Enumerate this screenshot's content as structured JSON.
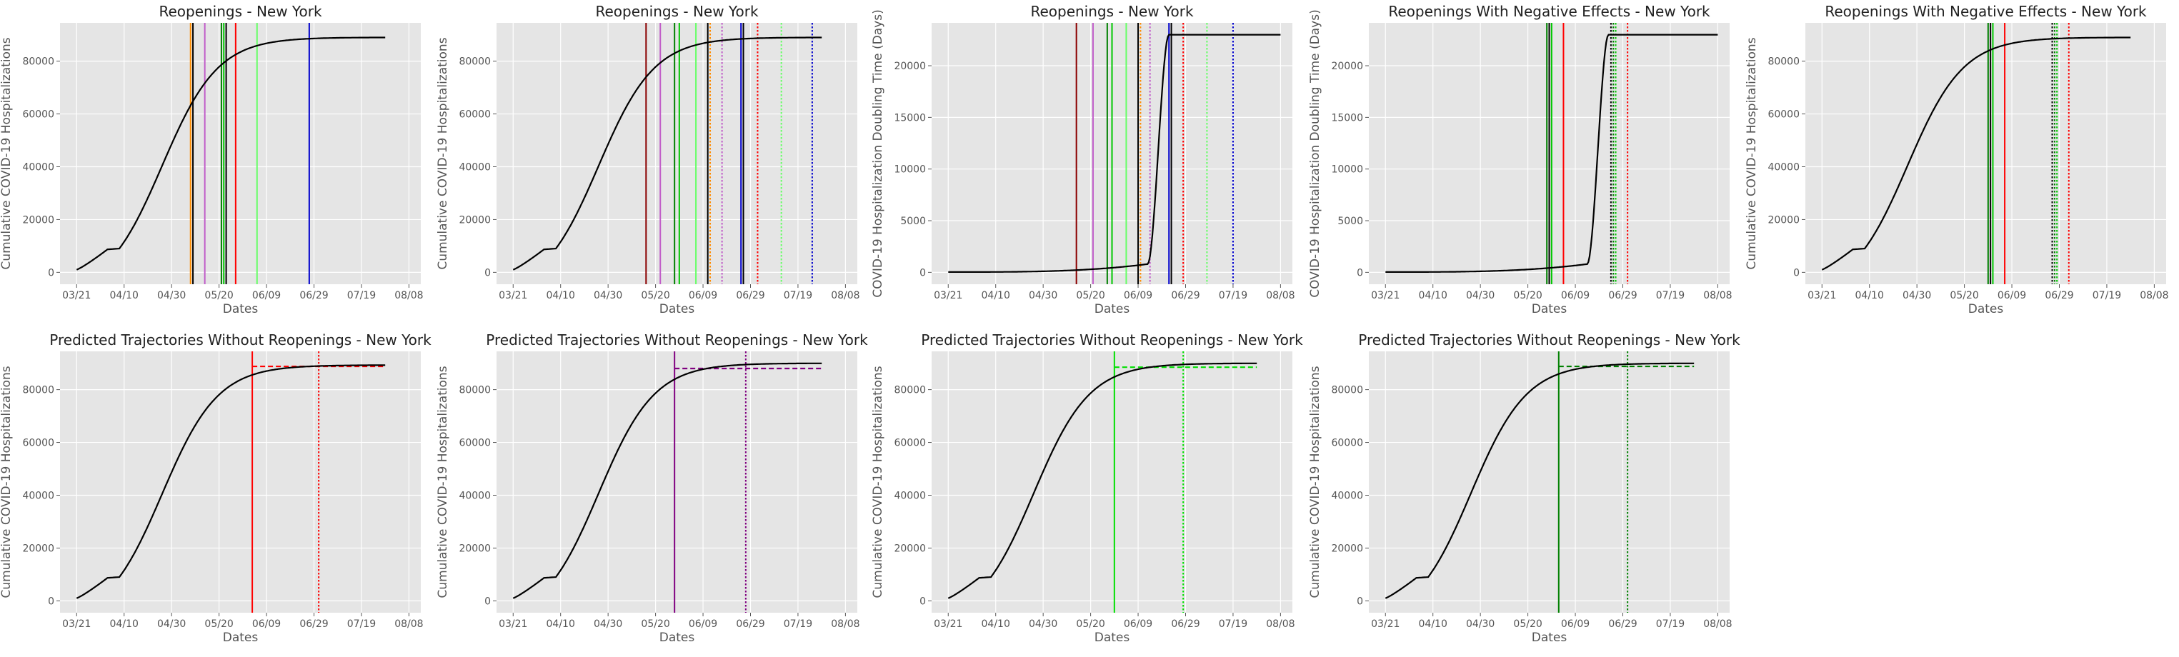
{
  "chart_data": [
    {
      "type": "line",
      "title": "Reopenings - New York",
      "xlabel": "Dates",
      "ylabel": "Cumulative COVID-19 Hospitalizations",
      "x_ticks": [
        "03/21",
        "04/10",
        "04/30",
        "05/20",
        "06/09",
        "06/29",
        "07/19",
        "08/08"
      ],
      "x_tick_days": [
        0,
        20,
        40,
        60,
        80,
        100,
        120,
        140
      ],
      "xlim": [
        -7,
        145
      ],
      "y_ticks": [
        0,
        20000,
        40000,
        60000,
        80000
      ],
      "ylim": [
        -4500,
        94500
      ],
      "grid": true,
      "curve": "logistic",
      "curve_params": {
        "y0": 1000,
        "cap": 89000,
        "plateau_start": 13,
        "plateau_end": 18,
        "x_end": 130
      },
      "vlines": [
        {
          "x": 48,
          "color": "#ff8c00",
          "style": "solid"
        },
        {
          "x": 49,
          "color": "#000000",
          "style": "solid"
        },
        {
          "x": 54,
          "color": "#c05cc8",
          "style": "solid"
        },
        {
          "x": 61,
          "color": "#008000",
          "style": "solid"
        },
        {
          "x": 62,
          "color": "#00c800",
          "style": "solid"
        },
        {
          "x": 63,
          "color": "#000000",
          "style": "solid"
        },
        {
          "x": 67,
          "color": "#ff0000",
          "style": "solid"
        },
        {
          "x": 76,
          "color": "#66ff66",
          "style": "solid"
        },
        {
          "x": 98,
          "color": "#0000cc",
          "style": "solid"
        }
      ]
    },
    {
      "type": "line",
      "title": "Reopenings - New York",
      "xlabel": "Dates",
      "ylabel": "Cumulative COVID-19 Hospitalizations",
      "x_ticks": [
        "03/21",
        "04/10",
        "04/30",
        "05/20",
        "06/09",
        "06/29",
        "07/19",
        "08/08"
      ],
      "x_tick_days": [
        0,
        20,
        40,
        60,
        80,
        100,
        120,
        140
      ],
      "xlim": [
        -7,
        145
      ],
      "y_ticks": [
        0,
        20000,
        40000,
        60000,
        80000
      ],
      "ylim": [
        -4500,
        94500
      ],
      "grid": true,
      "curve": "logistic",
      "curve_params": {
        "y0": 1000,
        "cap": 89000,
        "plateau_start": 13,
        "plateau_end": 18,
        "x_end": 130
      },
      "vlines": [
        {
          "x": 56,
          "color": "#8b0000",
          "style": "solid"
        },
        {
          "x": 62,
          "color": "#c05cc8",
          "style": "solid"
        },
        {
          "x": 68,
          "color": "#008000",
          "style": "solid"
        },
        {
          "x": 70,
          "color": "#00c800",
          "style": "solid"
        },
        {
          "x": 77,
          "color": "#66ff66",
          "style": "solid"
        },
        {
          "x": 82,
          "color": "#000000",
          "style": "solid"
        },
        {
          "x": 83,
          "color": "#ff8c00",
          "style": "dotted"
        },
        {
          "x": 88,
          "color": "#c05cc8",
          "style": "dotted"
        },
        {
          "x": 96,
          "color": "#0000cc",
          "style": "solid"
        },
        {
          "x": 97,
          "color": "#000000",
          "style": "solid"
        },
        {
          "x": 103,
          "color": "#ff0000",
          "style": "dotted"
        },
        {
          "x": 113,
          "color": "#66ff66",
          "style": "dotted"
        },
        {
          "x": 126,
          "color": "#0000cc",
          "style": "dotted"
        }
      ]
    },
    {
      "type": "line",
      "title": "Reopenings - New York",
      "xlabel": "Dates",
      "ylabel": "COVID-19 Hospitalization Doubling Time (Days)",
      "x_ticks": [
        "03/21",
        "04/10",
        "04/30",
        "05/20",
        "06/09",
        "06/29",
        "07/19",
        "08/08"
      ],
      "x_tick_days": [
        0,
        20,
        40,
        60,
        80,
        100,
        120,
        140
      ],
      "xlim": [
        -7,
        145
      ],
      "y_ticks": [
        0,
        5000,
        10000,
        15000,
        20000
      ],
      "ylim": [
        -1150,
        24150
      ],
      "grid": true,
      "curve": "doubling",
      "curve_params": {
        "y0": 30,
        "y_pre": 800,
        "bend": 84,
        "top_x": 93,
        "cap": 23000,
        "x_end": 140
      },
      "vlines": [
        {
          "x": 54,
          "color": "#8b0000",
          "style": "solid"
        },
        {
          "x": 61,
          "color": "#c05cc8",
          "style": "solid"
        },
        {
          "x": 67,
          "color": "#008000",
          "style": "solid"
        },
        {
          "x": 69,
          "color": "#00c800",
          "style": "solid"
        },
        {
          "x": 75,
          "color": "#66ff66",
          "style": "solid"
        },
        {
          "x": 80,
          "color": "#000000",
          "style": "solid"
        },
        {
          "x": 81,
          "color": "#ff8c00",
          "style": "dotted"
        },
        {
          "x": 85,
          "color": "#c05cc8",
          "style": "dotted"
        },
        {
          "x": 93,
          "color": "#0000cc",
          "style": "solid"
        },
        {
          "x": 94,
          "color": "#000000",
          "style": "solid"
        },
        {
          "x": 99,
          "color": "#ff0000",
          "style": "dotted"
        },
        {
          "x": 109,
          "color": "#66ff66",
          "style": "dotted"
        },
        {
          "x": 120,
          "color": "#0000cc",
          "style": "dotted"
        }
      ]
    },
    {
      "type": "line",
      "title": "Reopenings With Negative Effects - New York",
      "xlabel": "Dates",
      "ylabel": "COVID-19 Hospitalization Doubling Time (Days)",
      "x_ticks": [
        "03/21",
        "04/10",
        "04/30",
        "05/20",
        "06/09",
        "06/29",
        "07/19",
        "08/08"
      ],
      "x_tick_days": [
        0,
        20,
        40,
        60,
        80,
        100,
        120,
        140
      ],
      "xlim": [
        -7,
        145
      ],
      "y_ticks": [
        0,
        5000,
        10000,
        15000,
        20000
      ],
      "ylim": [
        -1150,
        24150
      ],
      "grid": true,
      "curve": "doubling",
      "curve_params": {
        "y0": 30,
        "y_pre": 800,
        "bend": 85,
        "top_x": 94,
        "cap": 23000,
        "x_end": 140
      },
      "vlines": [
        {
          "x": 68,
          "color": "#008000",
          "style": "solid"
        },
        {
          "x": 69,
          "color": "#000000",
          "style": "solid"
        },
        {
          "x": 70,
          "color": "#00c800",
          "style": "solid"
        },
        {
          "x": 75,
          "color": "#ff0000",
          "style": "solid"
        },
        {
          "x": 95,
          "color": "#000000",
          "style": "dotted"
        },
        {
          "x": 96,
          "color": "#008000",
          "style": "dotted"
        },
        {
          "x": 97,
          "color": "#00c800",
          "style": "dotted"
        },
        {
          "x": 102,
          "color": "#ff0000",
          "style": "dotted"
        }
      ]
    },
    {
      "type": "line",
      "title": "Reopenings With Negative Effects - New York",
      "xlabel": "Dates",
      "ylabel": "Cumulative COVID-19 Hospitalizations",
      "x_ticks": [
        "03/21",
        "04/10",
        "04/30",
        "05/20",
        "06/09",
        "06/29",
        "07/19",
        "08/08"
      ],
      "x_tick_days": [
        0,
        20,
        40,
        60,
        80,
        100,
        120,
        140
      ],
      "xlim": [
        -7,
        145
      ],
      "y_ticks": [
        0,
        20000,
        40000,
        60000,
        80000
      ],
      "ylim": [
        -4500,
        94500
      ],
      "grid": true,
      "curve": "logistic",
      "curve_params": {
        "y0": 1000,
        "cap": 89000,
        "plateau_start": 13,
        "plateau_end": 18,
        "x_end": 130
      },
      "vlines": [
        {
          "x": 70,
          "color": "#008000",
          "style": "solid"
        },
        {
          "x": 71,
          "color": "#000000",
          "style": "solid"
        },
        {
          "x": 72,
          "color": "#00c800",
          "style": "solid"
        },
        {
          "x": 77,
          "color": "#ff0000",
          "style": "solid"
        },
        {
          "x": 97,
          "color": "#000000",
          "style": "dotted"
        },
        {
          "x": 98,
          "color": "#008000",
          "style": "dotted"
        },
        {
          "x": 99,
          "color": "#00c800",
          "style": "dotted"
        },
        {
          "x": 104,
          "color": "#ff0000",
          "style": "dotted"
        }
      ]
    },
    {
      "type": "line",
      "title": "Predicted Trajectories Without Reopenings - New York",
      "xlabel": "Dates",
      "ylabel": "Cumulative COVID-19 Hospitalizations",
      "x_ticks": [
        "03/21",
        "04/10",
        "04/30",
        "05/20",
        "06/09",
        "06/29",
        "07/19",
        "08/08"
      ],
      "x_tick_days": [
        0,
        20,
        40,
        60,
        80,
        100,
        120,
        140
      ],
      "xlim": [
        -7,
        145
      ],
      "y_ticks": [
        0,
        20000,
        40000,
        60000,
        80000
      ],
      "ylim": [
        -4500,
        94500
      ],
      "grid": true,
      "curve": "logistic",
      "curve_params": {
        "y0": 1000,
        "cap": 89300,
        "plateau_start": 13,
        "plateau_end": 18,
        "x_end": 130
      },
      "vlines": [
        {
          "x": 74,
          "color": "#ff0000",
          "style": "solid"
        },
        {
          "x": 102,
          "color": "#ff0000",
          "style": "dotted"
        }
      ],
      "projection": {
        "color": "#ff0000",
        "x_start": 74,
        "x_end": 130,
        "value": 88800
      }
    },
    {
      "type": "line",
      "title": "Predicted Trajectories Without Reopenings - New York",
      "xlabel": "Dates",
      "ylabel": "Cumulative COVID-19 Hospitalizations",
      "x_ticks": [
        "03/21",
        "04/10",
        "04/30",
        "05/20",
        "06/09",
        "06/29",
        "07/19",
        "08/08"
      ],
      "x_tick_days": [
        0,
        20,
        40,
        60,
        80,
        100,
        120,
        140
      ],
      "xlim": [
        -7,
        145
      ],
      "y_ticks": [
        0,
        20000,
        40000,
        60000,
        80000
      ],
      "ylim": [
        -4500,
        94500
      ],
      "grid": true,
      "curve": "logistic",
      "curve_params": {
        "y0": 1000,
        "cap": 90000,
        "plateau_start": 13,
        "plateau_end": 18,
        "x_end": 130
      },
      "vlines": [
        {
          "x": 68,
          "color": "#800080",
          "style": "solid"
        },
        {
          "x": 98,
          "color": "#800080",
          "style": "dotted"
        }
      ],
      "projection": {
        "color": "#800080",
        "x_start": 68,
        "x_end": 130,
        "value": 88000
      }
    },
    {
      "type": "line",
      "title": "Predicted Trajectories Without Reopenings - New York",
      "xlabel": "Dates",
      "ylabel": "Cumulative COVID-19 Hospitalizations",
      "x_ticks": [
        "03/21",
        "04/10",
        "04/30",
        "05/20",
        "06/09",
        "06/29",
        "07/19",
        "08/08"
      ],
      "x_tick_days": [
        0,
        20,
        40,
        60,
        80,
        100,
        120,
        140
      ],
      "xlim": [
        -7,
        145
      ],
      "y_ticks": [
        0,
        20000,
        40000,
        60000,
        80000
      ],
      "ylim": [
        -4500,
        94500
      ],
      "grid": true,
      "curve": "logistic",
      "curve_params": {
        "y0": 1000,
        "cap": 90000,
        "plateau_start": 13,
        "plateau_end": 18,
        "x_end": 130
      },
      "vlines": [
        {
          "x": 70,
          "color": "#00e000",
          "style": "solid"
        },
        {
          "x": 99,
          "color": "#00e000",
          "style": "dotted"
        }
      ],
      "projection": {
        "color": "#00e000",
        "x_start": 70,
        "x_end": 130,
        "value": 88500
      }
    },
    {
      "type": "line",
      "title": "Predicted Trajectories Without Reopenings - New York",
      "xlabel": "Dates",
      "ylabel": "Cumulative COVID-19 Hospitalizations",
      "x_ticks": [
        "03/21",
        "04/10",
        "04/30",
        "05/20",
        "06/09",
        "06/29",
        "07/19",
        "08/08"
      ],
      "x_tick_days": [
        0,
        20,
        40,
        60,
        80,
        100,
        120,
        140
      ],
      "xlim": [
        -7,
        145
      ],
      "y_ticks": [
        0,
        20000,
        40000,
        60000,
        80000
      ],
      "ylim": [
        -4500,
        94500
      ],
      "grid": true,
      "curve": "logistic",
      "curve_params": {
        "y0": 1000,
        "cap": 90000,
        "plateau_start": 13,
        "plateau_end": 18,
        "x_end": 130
      },
      "vlines": [
        {
          "x": 73,
          "color": "#008000",
          "style": "solid"
        },
        {
          "x": 102,
          "color": "#008000",
          "style": "dotted"
        }
      ],
      "projection": {
        "color": "#008000",
        "x_start": 73,
        "x_end": 130,
        "value": 88800
      }
    }
  ],
  "colors": {
    "panel_bg": "#e5e5e5",
    "grid": "#ffffff",
    "text": "#555555",
    "title": "#222222",
    "curve": "#000000"
  }
}
